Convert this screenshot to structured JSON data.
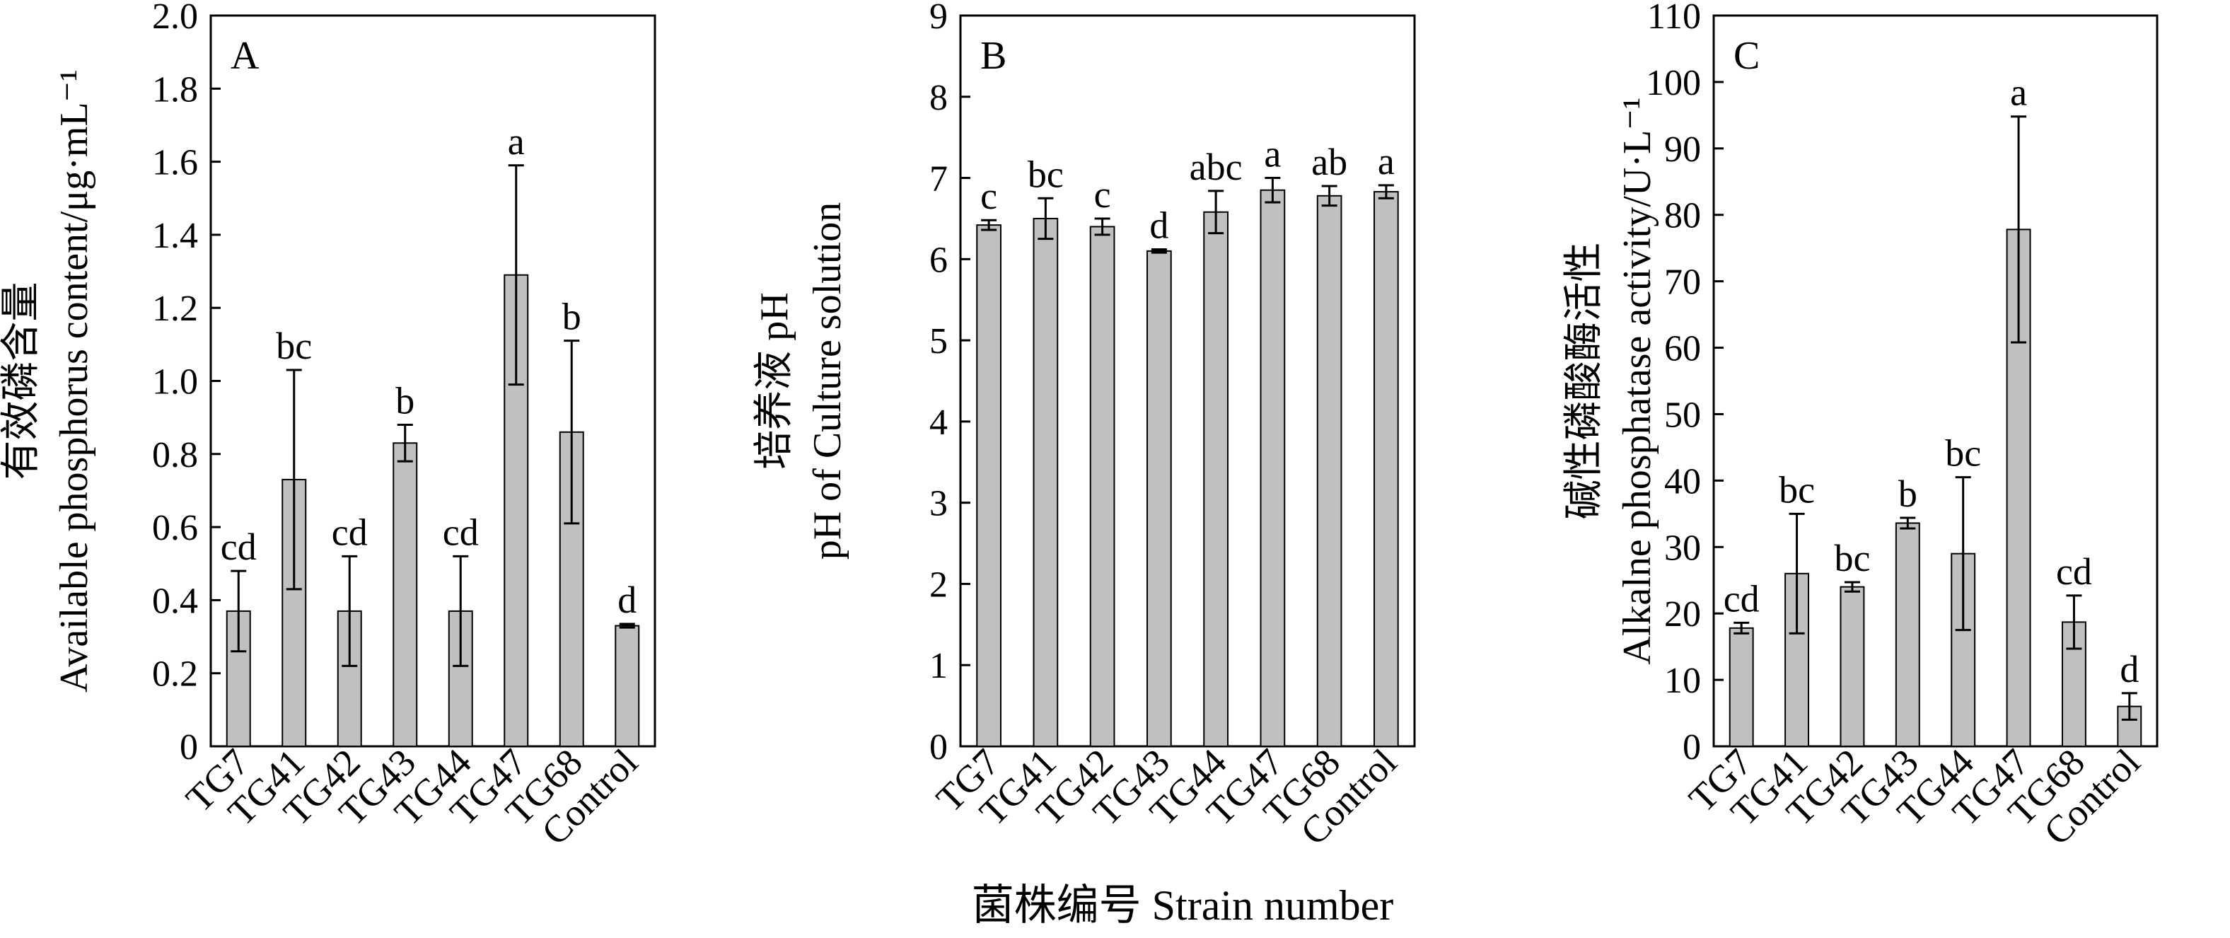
{
  "figure": {
    "shared_xlabel": "菌株编号 Strain number"
  },
  "chart_data": [
    {
      "type": "bar",
      "panel": "A",
      "title": "",
      "xlabel": "",
      "ylabel_cn": "有效磷含量",
      "ylabel_en": "Available phosphorus content/μg·mL⁻¹",
      "categories": [
        "TG7",
        "TG41",
        "TG42",
        "TG43",
        "TG44",
        "TG47",
        "TG68",
        "Control"
      ],
      "values": [
        0.37,
        0.73,
        0.37,
        0.83,
        0.37,
        1.29,
        0.86,
        0.33
      ],
      "errors": [
        0.11,
        0.3,
        0.15,
        0.05,
        0.15,
        0.3,
        0.25,
        0.005
      ],
      "significance": [
        "cd",
        "bc",
        "cd",
        "b",
        "cd",
        "a",
        "b",
        "d"
      ],
      "ylim": [
        0,
        2.0
      ],
      "yticks": [
        "0",
        "0.2",
        "0.4",
        "0.6",
        "0.8",
        "1.0",
        "1.2",
        "1.4",
        "1.6",
        "1.8",
        "2.0"
      ],
      "grid": false,
      "bar_color": "#c0c0c0"
    },
    {
      "type": "bar",
      "panel": "B",
      "title": "",
      "xlabel": "",
      "ylabel_cn": "培养液 pH",
      "ylabel_en": "pH of Culture solution",
      "categories": [
        "TG7",
        "TG41",
        "TG42",
        "TG43",
        "TG44",
        "TG47",
        "TG68",
        "Control"
      ],
      "values": [
        6.42,
        6.5,
        6.4,
        6.1,
        6.58,
        6.85,
        6.78,
        6.83
      ],
      "errors": [
        0.06,
        0.25,
        0.1,
        0.02,
        0.26,
        0.15,
        0.12,
        0.08
      ],
      "significance": [
        "c",
        "bc",
        "c",
        "d",
        "abc",
        "a",
        "ab",
        "a"
      ],
      "ylim": [
        0,
        9
      ],
      "yticks": [
        "0",
        "1",
        "2",
        "3",
        "4",
        "5",
        "6",
        "7",
        "8",
        "9"
      ],
      "grid": false,
      "bar_color": "#c0c0c0"
    },
    {
      "type": "bar",
      "panel": "C",
      "title": "",
      "xlabel": "",
      "ylabel_cn": "碱性磷酸酶活性",
      "ylabel_en": "Alkalne phosphatase activity/U·L⁻¹",
      "categories": [
        "TG7",
        "TG41",
        "TG42",
        "TG43",
        "TG44",
        "TG47",
        "TG68",
        "Control"
      ],
      "values": [
        17.8,
        26.0,
        24.0,
        33.6,
        29.0,
        77.8,
        18.7,
        6.0
      ],
      "errors": [
        0.8,
        9.0,
        0.7,
        0.8,
        11.5,
        17.0,
        4.0,
        2.0
      ],
      "significance": [
        "cd",
        "bc",
        "bc",
        "b",
        "bc",
        "a",
        "cd",
        "d"
      ],
      "ylim": [
        0,
        110
      ],
      "yticks": [
        "0",
        "10",
        "20",
        "30",
        "40",
        "50",
        "60",
        "70",
        "80",
        "90",
        "100",
        "110"
      ],
      "grid": false,
      "bar_color": "#c0c0c0"
    }
  ]
}
